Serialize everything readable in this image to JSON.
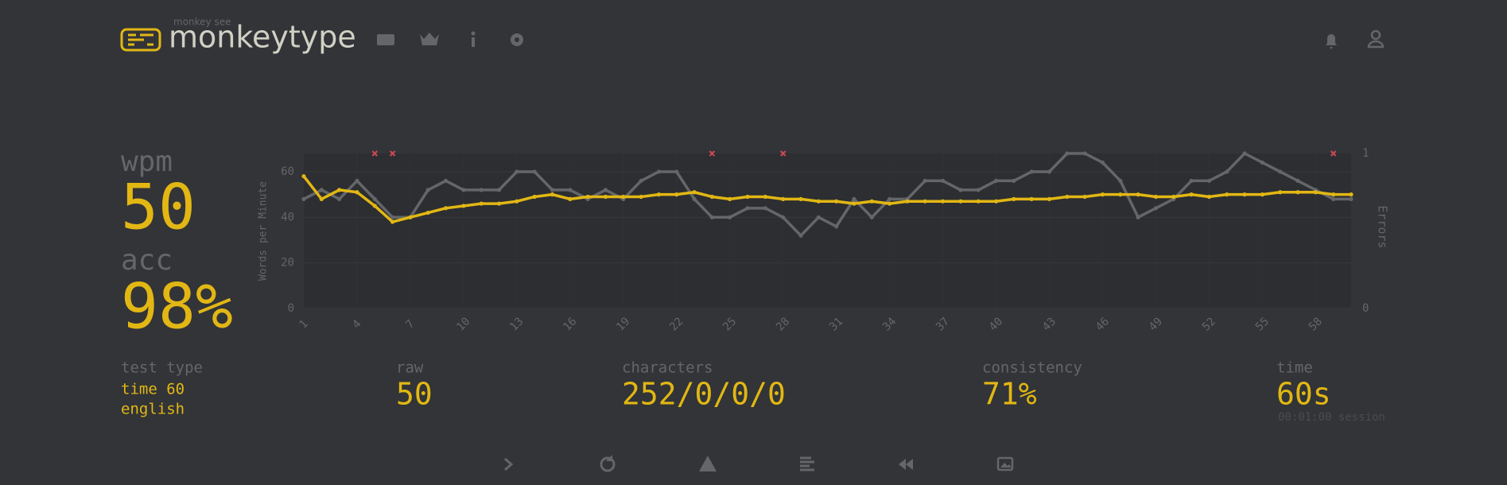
{
  "header": {
    "logo_top": "monkey see",
    "logo": "monkeytype"
  },
  "stats": {
    "wpm_label": "wpm",
    "wpm": "50",
    "acc_label": "acc",
    "acc": "98%",
    "test_type_label": "test type",
    "test_type": "time 60",
    "language": "english",
    "raw_label": "raw",
    "raw": "50",
    "characters_label": "characters",
    "characters": "252/0/0/0",
    "consistency_label": "consistency",
    "consistency": "71%",
    "time_label": "time",
    "time": "60s",
    "session": "00:01:00 session"
  },
  "chart_data": {
    "type": "line",
    "y_label": "Words per Minute",
    "y2_label": "Errors",
    "x": [
      1,
      2,
      3,
      4,
      5,
      6,
      7,
      8,
      9,
      10,
      11,
      12,
      13,
      14,
      15,
      16,
      17,
      18,
      19,
      20,
      21,
      22,
      23,
      24,
      25,
      26,
      27,
      28,
      29,
      30,
      31,
      32,
      33,
      34,
      35,
      36,
      37,
      38,
      39,
      40,
      41,
      42,
      43,
      44,
      45,
      46,
      47,
      48,
      49,
      50,
      51,
      52,
      53,
      54,
      55,
      56,
      57,
      58,
      59,
      60
    ],
    "xlim": [
      1,
      60
    ],
    "xticks": [
      1,
      4,
      7,
      10,
      13,
      16,
      19,
      22,
      25,
      28,
      31,
      34,
      37,
      40,
      43,
      46,
      49,
      52,
      55,
      58
    ],
    "ylim": [
      0,
      68
    ],
    "yticks": [
      0,
      20,
      40,
      60
    ],
    "y2lim": [
      0,
      1
    ],
    "y2ticks": [
      0,
      1
    ],
    "grid": true,
    "series": [
      {
        "color": "#646669",
        "values": [
          48,
          52,
          48,
          56,
          48,
          40,
          40,
          52,
          56,
          52,
          52,
          52,
          60,
          60,
          52,
          52,
          48,
          52,
          48,
          56,
          60,
          60,
          48,
          40,
          40,
          44,
          44,
          40,
          32,
          40,
          36,
          48,
          40,
          48,
          48,
          56,
          56,
          52,
          52,
          56,
          56,
          60,
          60,
          68,
          68,
          64,
          56,
          40,
          44,
          48,
          56,
          56,
          60,
          68,
          64,
          60,
          56,
          52,
          48,
          48
        ]
      },
      {
        "color": "#e2b714",
        "values": [
          58,
          48,
          52,
          51,
          45,
          38,
          40,
          42,
          44,
          45,
          46,
          46,
          47,
          49,
          50,
          48,
          49,
          49,
          49,
          49,
          50,
          50,
          51,
          49,
          48,
          49,
          49,
          48,
          48,
          47,
          47,
          46,
          47,
          46,
          47,
          47,
          47,
          47,
          47,
          47,
          48,
          48,
          48,
          49,
          49,
          50,
          50,
          50,
          49,
          49,
          50,
          49,
          50,
          50,
          50,
          51,
          51,
          51,
          50,
          50
        ]
      }
    ],
    "errors": {
      "color": "#ca4754",
      "axis": "y2",
      "x": [
        5,
        6,
        24,
        28,
        59
      ],
      "values": [
        1,
        1,
        1,
        1,
        1
      ]
    }
  }
}
